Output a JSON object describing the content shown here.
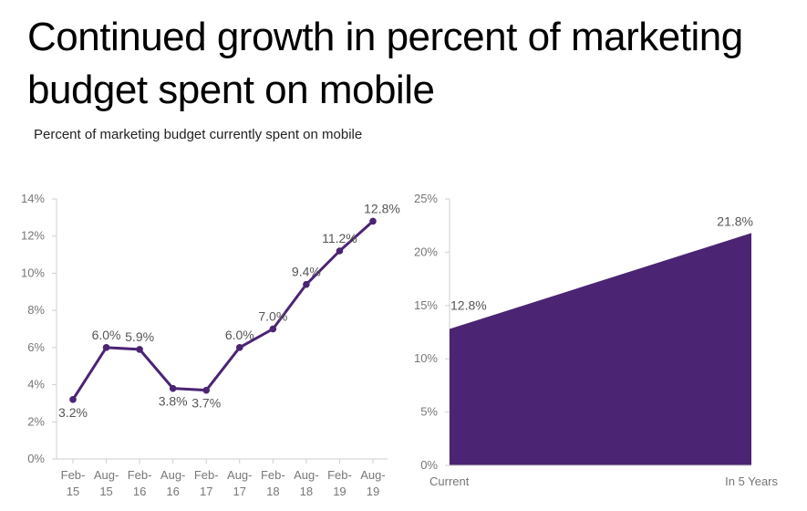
{
  "header": {
    "title": "Continued growth in percent of marketing budget spent on mobile",
    "subtitle": "Percent of marketing budget currently spent on mobile"
  },
  "chart_data": [
    {
      "type": "line",
      "categories": [
        [
          "Feb-",
          "15"
        ],
        [
          "Aug-",
          "15"
        ],
        [
          "Feb-",
          "16"
        ],
        [
          "Aug-",
          "16"
        ],
        [
          "Feb-",
          "17"
        ],
        [
          "Aug-",
          "17"
        ],
        [
          "Feb-",
          "18"
        ],
        [
          "Aug-",
          "18"
        ],
        [
          "Feb-",
          "19"
        ],
        [
          "Aug-",
          "19"
        ]
      ],
      "values": [
        3.2,
        6.0,
        5.9,
        3.8,
        3.7,
        6.0,
        7.0,
        9.4,
        11.2,
        12.8
      ],
      "labels": [
        "3.2%",
        "6.0%",
        "5.9%",
        "3.8%",
        "3.7%",
        "6.0%",
        "7.0%",
        "9.4%",
        "11.2%",
        "12.8%"
      ],
      "ylim": [
        0,
        14
      ],
      "yticks": [
        "0%",
        "2%",
        "4%",
        "6%",
        "8%",
        "10%",
        "12%",
        "14%"
      ],
      "color": "#4b2473",
      "grid": false
    },
    {
      "type": "area",
      "categories": [
        "Current",
        "In 5 Years"
      ],
      "values": [
        12.8,
        21.8
      ],
      "labels": [
        "12.8%",
        "21.8%"
      ],
      "ylim": [
        0,
        25
      ],
      "yticks": [
        "0%",
        "5%",
        "10%",
        "15%",
        "20%",
        "25%"
      ],
      "color": "#4b2473",
      "grid": false
    }
  ]
}
